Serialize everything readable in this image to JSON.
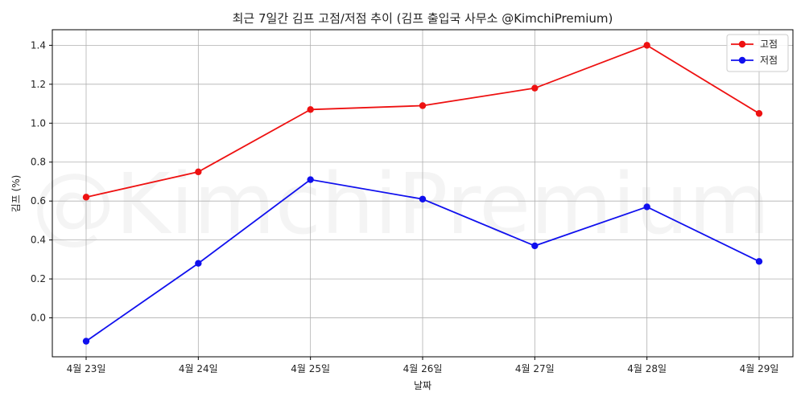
{
  "chart_data": {
    "type": "line",
    "title": "최근 7일간 김프 고점/저점 추이 (김프 출입국 사무소 @KimchiPremium)",
    "xlabel": "날짜",
    "ylabel": "김프 (%)",
    "categories": [
      "4월 23일",
      "4월 24일",
      "4월 25일",
      "4월 26일",
      "4월 27일",
      "4월 28일",
      "4월 29일"
    ],
    "series": [
      {
        "name": "고점",
        "color": "#ee1111",
        "values": [
          0.62,
          0.75,
          1.07,
          1.09,
          1.18,
          1.4,
          1.05
        ]
      },
      {
        "name": "저점",
        "color": "#1010ee",
        "values": [
          -0.12,
          0.28,
          0.71,
          0.61,
          0.37,
          0.57,
          0.29
        ]
      }
    ],
    "ylim": [
      -0.2,
      1.48
    ],
    "yticks": [
      0.0,
      0.2,
      0.4,
      0.6,
      0.8,
      1.0,
      1.2,
      1.4
    ],
    "ytick_labels": [
      "0.0",
      "0.2",
      "0.4",
      "0.6",
      "0.8",
      "1.0",
      "1.2",
      "1.4"
    ],
    "grid": true,
    "legend_position": "top-right",
    "watermark": "@KimchiPremium"
  }
}
